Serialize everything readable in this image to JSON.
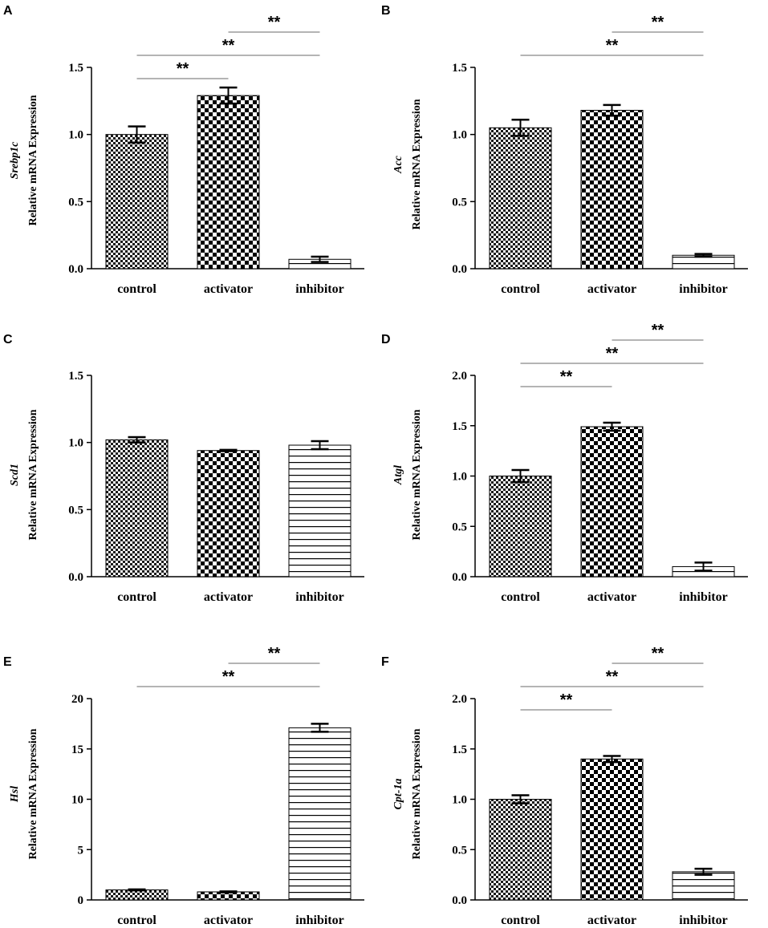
{
  "figure": {
    "panels": [
      "A",
      "B",
      "C",
      "D",
      "E",
      "F"
    ]
  },
  "colors": {
    "axis": "#000000",
    "bar_fill_control": "#3a3a3a",
    "bar_fill_activator": "#000000",
    "bar_fill_inhibitor": "#ffffff",
    "bracket_line": "#888888"
  },
  "chart_data": [
    {
      "panel": "A",
      "type": "bar",
      "title": "",
      "ylabel_gene": "Srebp1c",
      "ylabel": "Relative mRNA Expression",
      "categories": [
        "control",
        "activator",
        "inhibitor"
      ],
      "values": [
        1.0,
        1.29,
        0.07
      ],
      "errors": [
        0.06,
        0.06,
        0.02
      ],
      "patterns": [
        "fine-check",
        "coarse-check",
        "hlines"
      ],
      "ylim": [
        0,
        1.5
      ],
      "yticks": [
        0.0,
        0.5,
        1.0,
        1.5
      ],
      "tick_labels": [
        "0.0",
        "0.5",
        "1.0",
        "1.5"
      ],
      "significance": [
        {
          "from": 0,
          "to": 1,
          "label": "**"
        },
        {
          "from": 0,
          "to": 2,
          "label": "**"
        },
        {
          "from": 1,
          "to": 2,
          "label": "**"
        }
      ]
    },
    {
      "panel": "B",
      "type": "bar",
      "title": "",
      "ylabel_gene": "Acc",
      "ylabel": "Relative mRNA Expression",
      "categories": [
        "control",
        "activator",
        "inhibitor"
      ],
      "values": [
        1.05,
        1.18,
        0.1
      ],
      "errors": [
        0.06,
        0.04,
        0.01
      ],
      "patterns": [
        "fine-check",
        "coarse-check",
        "hlines"
      ],
      "ylim": [
        0,
        1.5
      ],
      "yticks": [
        0.0,
        0.5,
        1.0,
        1.5
      ],
      "tick_labels": [
        "0.0",
        "0.5",
        "1.0",
        "1.5"
      ],
      "significance": [
        {
          "from": 0,
          "to": 2,
          "label": "**"
        },
        {
          "from": 1,
          "to": 2,
          "label": "**"
        }
      ]
    },
    {
      "panel": "C",
      "type": "bar",
      "title": "",
      "ylabel_gene": "Scd1",
      "ylabel": "Relative mRNA Expression",
      "categories": [
        "control",
        "activator",
        "inhibitor"
      ],
      "values": [
        1.02,
        0.94,
        0.98
      ],
      "errors": [
        0.02,
        0.005,
        0.03
      ],
      "patterns": [
        "fine-check",
        "coarse-check",
        "hlines"
      ],
      "ylim": [
        0,
        1.5
      ],
      "yticks": [
        0.0,
        0.5,
        1.0,
        1.5
      ],
      "tick_labels": [
        "0.0",
        "0.5",
        "1.0",
        "1.5"
      ],
      "significance": []
    },
    {
      "panel": "D",
      "type": "bar",
      "title": "",
      "ylabel_gene": "Atgl",
      "ylabel": "Relative mRNA Expression",
      "categories": [
        "control",
        "activator",
        "inhibitor"
      ],
      "values": [
        1.0,
        1.49,
        0.1
      ],
      "errors": [
        0.06,
        0.04,
        0.04
      ],
      "patterns": [
        "fine-check",
        "coarse-check",
        "hlines"
      ],
      "ylim": [
        0,
        2.0
      ],
      "yticks": [
        0.0,
        0.5,
        1.0,
        1.5,
        2.0
      ],
      "tick_labels": [
        "0.0",
        "0.5",
        "1.0",
        "1.5",
        "2.0"
      ],
      "significance": [
        {
          "from": 0,
          "to": 1,
          "label": "**"
        },
        {
          "from": 0,
          "to": 2,
          "label": "**"
        },
        {
          "from": 1,
          "to": 2,
          "label": "**"
        }
      ]
    },
    {
      "panel": "E",
      "type": "bar",
      "title": "",
      "ylabel_gene": "Hsl",
      "ylabel": "Relative mRNA Expression",
      "categories": [
        "control",
        "activator",
        "inhibitor"
      ],
      "values": [
        1.0,
        0.8,
        17.1
      ],
      "errors": [
        0.05,
        0.05,
        0.4
      ],
      "patterns": [
        "fine-check",
        "coarse-check",
        "hlines"
      ],
      "ylim": [
        0,
        20
      ],
      "yticks": [
        0,
        5,
        10,
        15,
        20
      ],
      "tick_labels": [
        "0",
        "5",
        "10",
        "15",
        "20"
      ],
      "significance": [
        {
          "from": 0,
          "to": 2,
          "label": "**"
        },
        {
          "from": 1,
          "to": 2,
          "label": "**"
        }
      ]
    },
    {
      "panel": "F",
      "type": "bar",
      "title": "",
      "ylabel_gene": "Cpt-1a",
      "ylabel": "Relative mRNA Expression",
      "categories": [
        "control",
        "activator",
        "inhibitor"
      ],
      "values": [
        1.0,
        1.4,
        0.28
      ],
      "errors": [
        0.04,
        0.03,
        0.03
      ],
      "patterns": [
        "fine-check",
        "coarse-check",
        "hlines"
      ],
      "ylim": [
        0,
        2.0
      ],
      "yticks": [
        0.0,
        0.5,
        1.0,
        1.5,
        2.0
      ],
      "tick_labels": [
        "0.0",
        "0.5",
        "1.0",
        "1.5",
        "2.0"
      ],
      "significance": [
        {
          "from": 0,
          "to": 1,
          "label": "**"
        },
        {
          "from": 0,
          "to": 2,
          "label": "**"
        },
        {
          "from": 1,
          "to": 2,
          "label": "**"
        }
      ]
    }
  ]
}
